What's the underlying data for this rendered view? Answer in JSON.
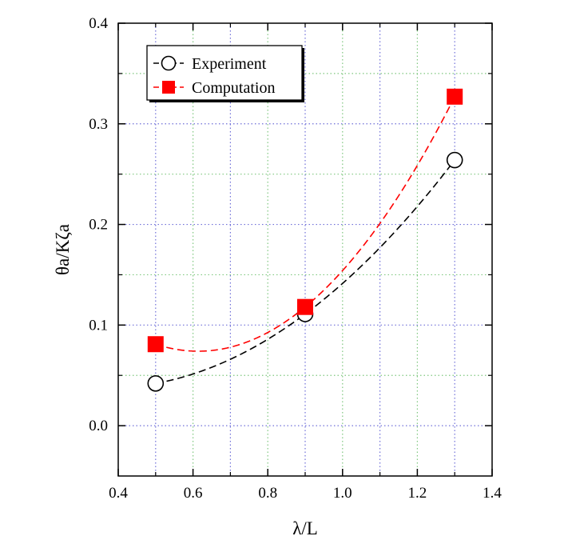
{
  "chart_data": {
    "type": "line",
    "title": "",
    "xlabel": "λ/L",
    "ylabel": "θa/Kζa",
    "xlim": [
      0.4,
      1.4
    ],
    "ylim": [
      -0.05,
      0.4
    ],
    "xticks": [
      0.4,
      0.6,
      0.8,
      1.0,
      1.2,
      1.4
    ],
    "xtick_labels": [
      "0.4",
      "0.6",
      "0.8",
      "1.0",
      "1.2",
      "1.4"
    ],
    "yticks": [
      0.0,
      0.1,
      0.2,
      0.3,
      0.4
    ],
    "ytick_labels": [
      "0.0",
      "0.1",
      "0.2",
      "0.3",
      "0.4"
    ],
    "grid": true,
    "legend_position": "top-left",
    "series": [
      {
        "name": "Experiment",
        "x": [
          0.5,
          0.9,
          1.3
        ],
        "values": [
          0.042,
          0.111,
          0.264
        ],
        "color": "#000000",
        "marker": "open-circle",
        "line_style": "dashed"
      },
      {
        "name": "Computation",
        "x": [
          0.5,
          0.9,
          1.3
        ],
        "values": [
          0.081,
          0.118,
          0.327
        ],
        "color": "#ff0000",
        "marker": "filled-square",
        "line_style": "dashed"
      }
    ]
  }
}
